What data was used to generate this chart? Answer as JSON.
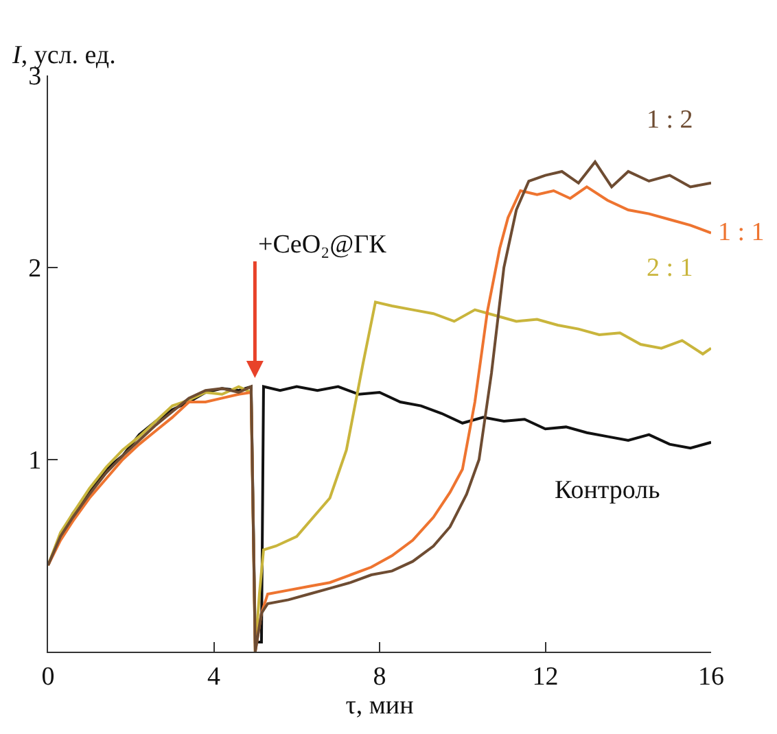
{
  "chart_data": {
    "type": "line",
    "xlabel": "τ, мин",
    "ylabel": "I, усл. ед.",
    "xlim": [
      0,
      16
    ],
    "xticks": [
      0,
      4,
      8,
      12,
      16
    ],
    "ylim": [
      0,
      3
    ],
    "yticks": [
      1,
      2,
      3
    ],
    "legend": false,
    "marker": "none",
    "line_style": "solid",
    "annotations": [
      "+CeO₂@ГК"
    ],
    "series": [
      {
        "name": "Контроль",
        "color": "#111111",
        "x": [
          0,
          0.3,
          0.6,
          1,
          1.4,
          1.8,
          2.2,
          2.6,
          3,
          3.4,
          3.8,
          4.2,
          4.6,
          4.9,
          5.0,
          5.15,
          5.2,
          5.6,
          6,
          6.5,
          7,
          7.5,
          8,
          8.5,
          9,
          9.5,
          10,
          10.5,
          11,
          11.5,
          12,
          12.5,
          13,
          13.5,
          14,
          14.5,
          15,
          15.5,
          16
        ],
        "values": [
          0.45,
          0.6,
          0.72,
          0.83,
          0.95,
          1.02,
          1.13,
          1.2,
          1.26,
          1.3,
          1.35,
          1.37,
          1.36,
          1.38,
          0.05,
          0.05,
          1.38,
          1.36,
          1.38,
          1.36,
          1.38,
          1.34,
          1.35,
          1.3,
          1.28,
          1.24,
          1.19,
          1.22,
          1.2,
          1.21,
          1.16,
          1.17,
          1.14,
          1.12,
          1.1,
          1.13,
          1.08,
          1.06,
          1.09
        ]
      },
      {
        "name": "2 : 1",
        "color": "#c9b53c",
        "x": [
          0,
          0.3,
          0.6,
          1,
          1.4,
          1.8,
          2.2,
          2.6,
          3,
          3.4,
          3.8,
          4.2,
          4.6,
          4.9,
          5.0,
          5.1,
          5.2,
          5.5,
          6,
          6.4,
          6.8,
          7.2,
          7.6,
          7.9,
          8.3,
          8.8,
          9.3,
          9.8,
          10.3,
          10.8,
          11.3,
          11.8,
          12.3,
          12.8,
          13.3,
          13.8,
          14.3,
          14.8,
          15.3,
          15.8,
          16
        ],
        "values": [
          0.45,
          0.62,
          0.72,
          0.85,
          0.96,
          1.05,
          1.12,
          1.2,
          1.28,
          1.31,
          1.35,
          1.34,
          1.38,
          1.35,
          0.0,
          0.3,
          0.53,
          0.55,
          0.6,
          0.7,
          0.8,
          1.05,
          1.5,
          1.82,
          1.8,
          1.78,
          1.76,
          1.72,
          1.78,
          1.75,
          1.72,
          1.73,
          1.7,
          1.68,
          1.65,
          1.66,
          1.6,
          1.58,
          1.62,
          1.55,
          1.58
        ]
      },
      {
        "name": "1 : 1",
        "color": "#ee7430",
        "x": [
          0,
          0.3,
          0.6,
          1,
          1.4,
          1.8,
          2.2,
          2.6,
          3,
          3.4,
          3.8,
          4.2,
          4.6,
          4.9,
          5.0,
          5.15,
          5.3,
          5.8,
          6.3,
          6.8,
          7.3,
          7.8,
          8.3,
          8.8,
          9.3,
          9.7,
          10.0,
          10.3,
          10.6,
          10.9,
          11.1,
          11.4,
          11.8,
          12.2,
          12.6,
          13.0,
          13.5,
          14.0,
          14.5,
          15.0,
          15.5,
          16
        ],
        "values": [
          0.45,
          0.58,
          0.68,
          0.8,
          0.9,
          1.0,
          1.08,
          1.15,
          1.22,
          1.3,
          1.3,
          1.32,
          1.34,
          1.35,
          0.0,
          0.2,
          0.3,
          0.32,
          0.34,
          0.36,
          0.4,
          0.44,
          0.5,
          0.58,
          0.7,
          0.83,
          0.95,
          1.3,
          1.77,
          2.1,
          2.26,
          2.4,
          2.38,
          2.4,
          2.36,
          2.42,
          2.35,
          2.3,
          2.28,
          2.25,
          2.22,
          2.18
        ]
      },
      {
        "name": "1 : 2",
        "color": "#6e4c32",
        "x": [
          0,
          0.3,
          0.6,
          1,
          1.4,
          1.8,
          2.2,
          2.6,
          3,
          3.4,
          3.8,
          4.2,
          4.6,
          4.9,
          5.0,
          5.15,
          5.3,
          5.8,
          6.3,
          6.8,
          7.3,
          7.8,
          8.3,
          8.8,
          9.3,
          9.7,
          10.1,
          10.4,
          10.7,
          11.0,
          11.3,
          11.6,
          12.0,
          12.4,
          12.8,
          13.2,
          13.6,
          14.0,
          14.5,
          15.0,
          15.5,
          16
        ],
        "values": [
          0.45,
          0.6,
          0.7,
          0.82,
          0.93,
          1.02,
          1.1,
          1.18,
          1.25,
          1.32,
          1.36,
          1.37,
          1.35,
          1.38,
          0.0,
          0.2,
          0.25,
          0.27,
          0.3,
          0.33,
          0.36,
          0.4,
          0.42,
          0.47,
          0.55,
          0.65,
          0.82,
          1.0,
          1.45,
          2.0,
          2.3,
          2.45,
          2.48,
          2.5,
          2.44,
          2.55,
          2.42,
          2.5,
          2.45,
          2.48,
          2.42,
          2.44
        ]
      }
    ]
  }
}
